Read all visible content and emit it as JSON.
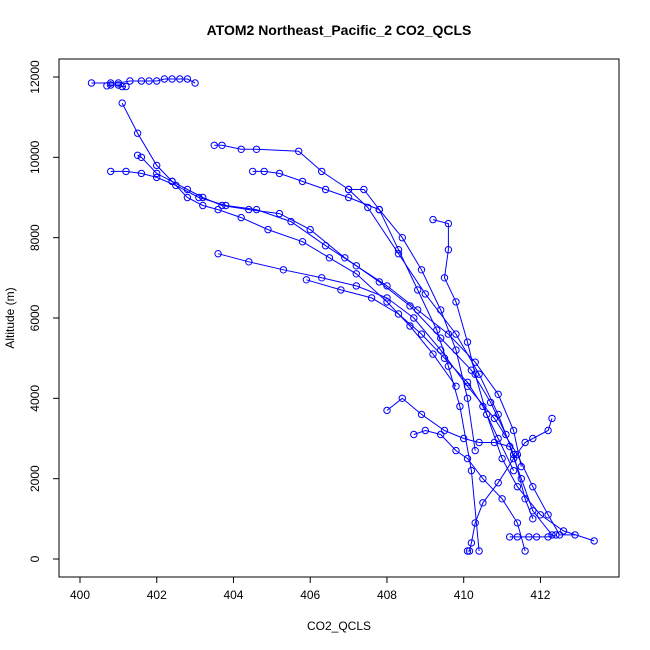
{
  "chart_data": {
    "type": "line",
    "title": "ATOM2 Northeast_Pacific_2 CO2_QCLS",
    "xlabel": "CO2_QCLS",
    "ylabel": "Altitude (m)",
    "xlim": [
      400,
      413.5
    ],
    "ylim": [
      0,
      12000
    ],
    "xticks": [
      "400",
      "402",
      "404",
      "406",
      "408",
      "410",
      "412"
    ],
    "yticks": [
      "0",
      "2000",
      "4000",
      "6000",
      "8000",
      "10000",
      "12000"
    ],
    "grid": false,
    "legend": "none",
    "color": "#0000ff",
    "series": [
      {
        "x": [
          400.3,
          400.8,
          401.0,
          401.3,
          401.6,
          401.8,
          402.0,
          402.2,
          402.4,
          402.6,
          402.8,
          403.0
        ],
        "y": [
          11850,
          11850,
          11850,
          11900,
          11900,
          11900,
          11900,
          11950,
          11950,
          11950,
          11950,
          11850
        ]
      },
      {
        "x": [
          400.7,
          400.8,
          401.0,
          401.1,
          401.2
        ],
        "y": [
          11780,
          11800,
          11800,
          11760,
          11760
        ]
      },
      {
        "x": [
          401.1,
          401.5,
          402.0,
          402.4,
          402.8,
          403.2,
          403.6,
          404.2,
          404.9,
          405.8,
          406.5,
          407.2,
          408.0,
          408.6,
          409.2,
          409.8
        ],
        "y": [
          11350,
          10600,
          9800,
          9400,
          9000,
          8800,
          8700,
          8500,
          8200,
          7900,
          7500,
          7100,
          6400,
          5800,
          5100,
          4300
        ]
      },
      {
        "x": [
          401.5,
          401.6,
          402.0,
          402.4,
          402.8,
          403.2,
          403.7,
          404.4,
          405.2,
          406.0,
          406.9,
          407.8,
          408.6,
          409.4,
          410.2,
          410.7,
          411.1
        ],
        "y": [
          10050,
          10000,
          9600,
          9400,
          9200,
          9000,
          8800,
          8700,
          8600,
          8200,
          7500,
          6900,
          6300,
          5500,
          4700,
          3900,
          3100
        ]
      },
      {
        "x": [
          400.8,
          401.2,
          401.6,
          402.0,
          402.5,
          403.1,
          403.8,
          404.6,
          405.5,
          406.4,
          407.2,
          408.0,
          408.8,
          409.6,
          410.3,
          410.9,
          411.3,
          411.5
        ],
        "y": [
          9650,
          9650,
          9600,
          9500,
          9300,
          9000,
          8800,
          8700,
          8400,
          7800,
          7300,
          6800,
          6200,
          5600,
          4900,
          4100,
          3200,
          2300
        ]
      },
      {
        "x": [
          403.5,
          403.7,
          404.2,
          404.6,
          405.7,
          406.3,
          407.0,
          407.5,
          408.3,
          409.0,
          409.8,
          410.4,
          410.9,
          411.3,
          411.6,
          411.8
        ],
        "y": [
          10300,
          10300,
          10200,
          10200,
          10150,
          9650,
          9200,
          8750,
          7600,
          6600,
          5600,
          4600,
          3600,
          2600,
          1500,
          1000
        ]
      },
      {
        "x": [
          404.5,
          404.8,
          405.2,
          405.8,
          406.4,
          407.0,
          407.8,
          408.4,
          408.9,
          409.4,
          409.8,
          410.1,
          410.3
        ],
        "y": [
          9650,
          9650,
          9600,
          9400,
          9200,
          9000,
          8700,
          8000,
          7200,
          6200,
          5200,
          4000,
          2700
        ]
      },
      {
        "x": [
          407.0,
          407.4,
          407.8,
          408.3,
          408.8,
          409.3,
          409.6,
          409.9,
          410.2,
          410.4
        ],
        "y": [
          9200,
          9200,
          8700,
          7700,
          6700,
          5700,
          4800,
          3800,
          2200,
          200
        ]
      },
      {
        "x": [
          409.2,
          409.6,
          409.6,
          409.5,
          409.8,
          410.1,
          410.3,
          410.6,
          411.0,
          411.4,
          412.0,
          412.6,
          413.4
        ],
        "y": [
          8450,
          8350,
          7700,
          7000,
          6400,
          5400,
          4600,
          3600,
          2500,
          1800,
          1100,
          700,
          450
        ]
      },
      {
        "x": [
          403.6,
          404.4,
          405.3,
          406.3,
          407.2,
          408.0,
          408.7,
          409.4,
          410.1,
          410.8,
          411.4,
          411.8,
          412.2,
          412.5,
          412.9
        ],
        "y": [
          7600,
          7400,
          7200,
          7000,
          6800,
          6500,
          6000,
          5200,
          4300,
          3500,
          2600,
          1800,
          1100,
          600,
          600
        ]
      },
      {
        "x": [
          405.9,
          406.8,
          407.6,
          408.3,
          408.9,
          409.5,
          410.1,
          410.5,
          410.9,
          411.3
        ],
        "y": [
          6950,
          6700,
          6500,
          6100,
          5600,
          5000,
          4400,
          3800,
          3000,
          2200
        ]
      },
      {
        "x": [
          408.0,
          408.4,
          408.9,
          409.5,
          410.0,
          410.4,
          410.8,
          411.2,
          411.5,
          411.8,
          412.3
        ],
        "y": [
          3700,
          4000,
          3600,
          3200,
          3000,
          2900,
          2900,
          2800,
          2000,
          1200,
          600
        ]
      },
      {
        "x": [
          408.7,
          409.0,
          409.4,
          409.8,
          410.1,
          410.5,
          411.0,
          411.4,
          411.6
        ],
        "y": [
          3100,
          3200,
          3100,
          2700,
          2500,
          2000,
          1500,
          900,
          200
        ]
      },
      {
        "x": [
          410.1,
          410.15,
          410.2,
          410.3,
          410.5,
          410.9,
          411.3,
          411.6,
          411.8,
          412.2,
          412.3
        ],
        "y": [
          200,
          200,
          400,
          900,
          1400,
          1900,
          2500,
          2900,
          3000,
          3200,
          3500
        ]
      },
      {
        "x": [
          411.2,
          411.4,
          411.7,
          411.9,
          412.2,
          412.4
        ],
        "y": [
          550,
          550,
          550,
          550,
          550,
          600
        ]
      }
    ]
  }
}
